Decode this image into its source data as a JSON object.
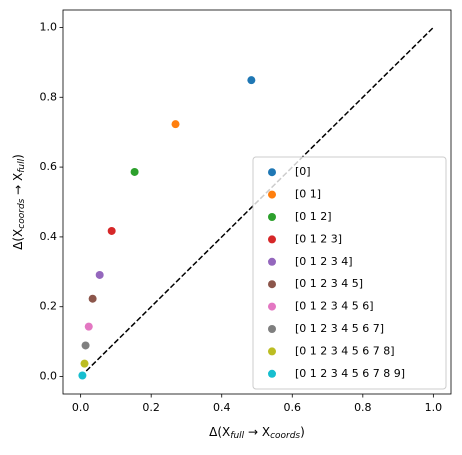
{
  "chart_data": {
    "type": "scatter",
    "xlabel": [
      "Δ(X",
      "full",
      " → X",
      "coords",
      ")"
    ],
    "ylabel": [
      "Δ(X",
      "coords",
      " → X",
      "full",
      ")"
    ],
    "xlim": [
      -0.05,
      1.05
    ],
    "ylim": [
      -0.05,
      1.05
    ],
    "xticks": [
      {
        "value": 0,
        "label": "0.0"
      },
      0.2,
      0.4,
      0.6,
      0.8,
      {
        "value": 1,
        "label": "1.0"
      }
    ],
    "yticks": [
      {
        "value": 0,
        "label": "0.0"
      },
      0.2,
      0.4,
      0.6,
      0.8,
      {
        "value": 1,
        "label": "1.0"
      }
    ],
    "reference_line": {
      "x": [
        0,
        1
      ],
      "y": [
        0,
        1
      ],
      "color": "#000000"
    },
    "legend": "lower right",
    "series": [
      {
        "name": "[0]",
        "color": "#1f77b4",
        "x": [
          0.484
        ],
        "values": [
          0.849
        ]
      },
      {
        "name": "[0 1]",
        "color": "#ff7f0e",
        "x": [
          0.269
        ],
        "values": [
          0.723
        ]
      },
      {
        "name": "[0 1 2]",
        "color": "#2ca02c",
        "x": [
          0.153
        ],
        "values": [
          0.586
        ]
      },
      {
        "name": "[0 1 2 3]",
        "color": "#d62728",
        "x": [
          0.088
        ],
        "values": [
          0.417
        ]
      },
      {
        "name": "[0 1 2 3 4]",
        "color": "#9467bd",
        "x": [
          0.054
        ],
        "values": [
          0.291
        ]
      },
      {
        "name": "[0 1 2 3 4 5]",
        "color": "#8c564b",
        "x": [
          0.034
        ],
        "values": [
          0.223
        ]
      },
      {
        "name": "[0 1 2 3 4 5 6]",
        "color": "#e377c2",
        "x": [
          0.023
        ],
        "values": [
          0.143
        ]
      },
      {
        "name": "[0 1 2 3 4 5 6 7]",
        "color": "#7f7f7f",
        "x": [
          0.014
        ],
        "values": [
          0.089
        ]
      },
      {
        "name": "[0 1 2 3 4 5 6 7 8]",
        "color": "#bcbd22",
        "x": [
          0.011
        ],
        "values": [
          0.037
        ]
      },
      {
        "name": "[0 1 2 3 4 5 6 7 8 9]",
        "color": "#17becf",
        "x": [
          0.005
        ],
        "values": [
          0.003
        ]
      }
    ]
  }
}
